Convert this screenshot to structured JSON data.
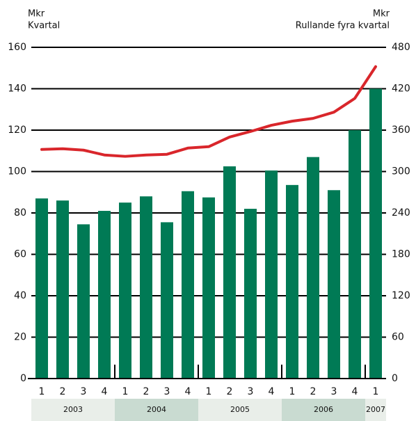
{
  "chart_data": {
    "type": "bar_line",
    "y_label": [
      "Mkr",
      "Kvartal"
    ],
    "y2_label": [
      "Mkr",
      "Rullande fyra kvartal"
    ],
    "groups": [
      {
        "label": "2003",
        "categories": [
          "1",
          "2",
          "3",
          "4"
        ]
      },
      {
        "label": "2004",
        "categories": [
          "1",
          "2",
          "3",
          "4"
        ]
      },
      {
        "label": "2005",
        "categories": [
          "1",
          "2",
          "3",
          "4"
        ]
      },
      {
        "label": "2006",
        "categories": [
          "1",
          "2",
          "3",
          "4"
        ]
      },
      {
        "label": "2007",
        "categories": [
          "1"
        ]
      }
    ],
    "group_colors": [
      "#e9eee9",
      "#c9dbd1"
    ],
    "series": [
      {
        "type": "bar",
        "color": "#007a55",
        "values": [
          87,
          86,
          74.5,
          81,
          85,
          88,
          75.5,
          90.5,
          87.5,
          102.5,
          82,
          100.5,
          93.5,
          107,
          91,
          120,
          140
        ]
      },
      {
        "type": "line",
        "axis": "y2",
        "color": "#d9262b",
        "values": [
          332,
          333,
          331,
          324,
          322,
          324,
          325,
          334,
          336,
          350,
          358,
          367,
          373,
          377,
          386,
          406,
          452
        ]
      }
    ],
    "ylim": [
      0,
      160
    ],
    "yticks": [
      0,
      20,
      40,
      60,
      80,
      100,
      120,
      140,
      160
    ],
    "y2lim": [
      0,
      480
    ],
    "y2ticks": [
      0,
      60,
      120,
      180,
      240,
      300,
      360,
      420,
      480
    ],
    "grid": true
  }
}
